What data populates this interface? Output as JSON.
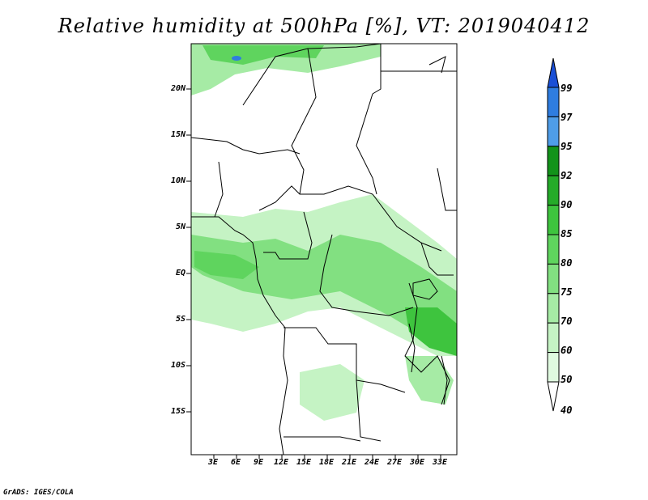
{
  "title": "Relative humidity at 500hPa [%], VT: 2019040412",
  "credit": "GrADS: IGES/COLA",
  "lat_labels": [
    "20N",
    "15N",
    "10N",
    "5N",
    "EQ",
    "5S",
    "10S",
    "15S"
  ],
  "lon_labels": [
    "3E",
    "6E",
    "9E",
    "12E",
    "15E",
    "18E",
    "21E",
    "24E",
    "27E",
    "30E",
    "33E"
  ],
  "colorbar": {
    "levels": [
      "99",
      "97",
      "95",
      "92",
      "90",
      "85",
      "80",
      "75",
      "70",
      "60",
      "50",
      "40"
    ],
    "colors": [
      "#1a4fd6",
      "#2f7de0",
      "#4f9de8",
      "#12931a",
      "#25ab29",
      "#3ec43e",
      "#5fd45e",
      "#82e081",
      "#a6eba5",
      "#c5f3c4",
      "#e0fae0",
      "#ffffff"
    ]
  },
  "map": {
    "region": "Central Africa",
    "lon_range": [
      0,
      35
    ],
    "lat_range": [
      -20,
      24
    ]
  }
}
